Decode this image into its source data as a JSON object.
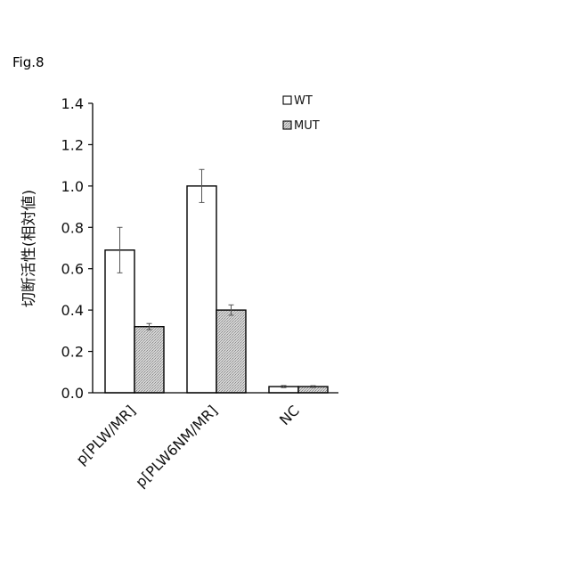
{
  "figure_label": "Fig.8",
  "colors": {
    "wt_fill": "#ffffff",
    "mut_fill": "#c9c9c9",
    "axis": "#000000"
  },
  "chart_data": {
    "type": "bar",
    "title": "",
    "xlabel": "",
    "ylabel": "切断活性(相対値)",
    "categories": [
      "p[PLW/MR]",
      "p[PLW6NM/MR]",
      "NC"
    ],
    "series": [
      {
        "name": "WT",
        "values": [
          0.69,
          1.0,
          0.03
        ],
        "errors": [
          0.11,
          0.08,
          0.005
        ]
      },
      {
        "name": "MUT",
        "values": [
          0.32,
          0.4,
          0.03
        ],
        "errors": [
          0.015,
          0.025,
          0.004
        ]
      }
    ],
    "ylim": [
      0,
      1.4
    ],
    "yticks": [
      "0.0",
      "0.2",
      "0.4",
      "0.6",
      "0.8",
      "1.0",
      "1.2",
      "1.4"
    ],
    "grid": false,
    "legend_position": "top-right"
  }
}
